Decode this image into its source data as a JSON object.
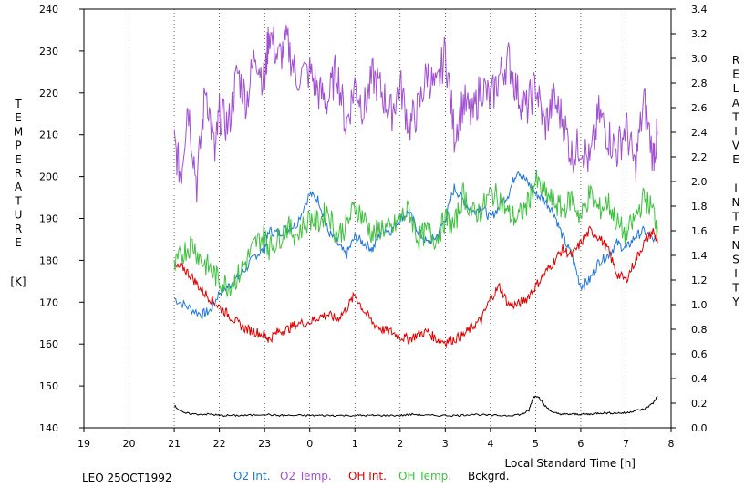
{
  "chart_data": {
    "type": "line",
    "station_label": "LEO 25OCT1992",
    "xlabel": "Local Standard Time [h]",
    "ylabel_left_letters": [
      "T",
      "E",
      "M",
      "P",
      "E",
      "R",
      "A",
      "T",
      "U",
      "R",
      "E"
    ],
    "ylabel_left_unit": "[K]",
    "ylabel_right_letters": [
      "R",
      "E",
      "L",
      "A",
      "T",
      "I",
      "V",
      "E",
      "",
      "I",
      "N",
      "T",
      "E",
      "N",
      "S",
      "I",
      "T",
      "Y"
    ],
    "x_ticks": [
      "19",
      "20",
      "21",
      "22",
      "23",
      "0",
      "1",
      "2",
      "3",
      "4",
      "5",
      "6",
      "7",
      "8"
    ],
    "x_range_hours": [
      19,
      32
    ],
    "y_left_ticks": [
      "140",
      "150",
      "160",
      "170",
      "180",
      "190",
      "200",
      "210",
      "220",
      "230",
      "240"
    ],
    "y_left_range": [
      140,
      240
    ],
    "y_right_ticks": [
      "0.0",
      "0.2",
      "0.4",
      "0.6",
      "0.8",
      "1.0",
      "1.2",
      "1.4",
      "1.6",
      "1.8",
      "2.0",
      "2.2",
      "2.4",
      "2.6",
      "2.8",
      "3.0",
      "3.2",
      "3.4"
    ],
    "y_right_range": [
      0,
      3.4
    ],
    "legend_position": "bottom",
    "grid": "vertical",
    "series": [
      {
        "name": "O2 Int.",
        "color": "#1e78d8",
        "axis": "right",
        "x": [
          21.0,
          21.3,
          21.6,
          21.8,
          22.0,
          22.2,
          22.4,
          22.6,
          22.8,
          23.0,
          23.1,
          23.3,
          23.5,
          23.7,
          24.0,
          24.2,
          24.4,
          24.6,
          24.8,
          25.0,
          25.2,
          25.4,
          25.6,
          25.8,
          26.0,
          26.2,
          26.4,
          26.6,
          26.8,
          27.0,
          27.2,
          27.4,
          27.6,
          27.8,
          28.0,
          28.2,
          28.4,
          28.6,
          28.8,
          29.0,
          29.2,
          29.4,
          29.6,
          29.8,
          30.0,
          30.2,
          30.4,
          30.6,
          30.8,
          31.0,
          31.2,
          31.4,
          31.7
        ],
        "y": [
          1.05,
          0.98,
          0.92,
          0.95,
          1.1,
          1.15,
          1.22,
          1.3,
          1.4,
          1.45,
          1.6,
          1.58,
          1.62,
          1.65,
          1.9,
          1.85,
          1.6,
          1.5,
          1.4,
          1.55,
          1.5,
          1.45,
          1.62,
          1.6,
          1.7,
          1.75,
          1.6,
          1.5,
          1.55,
          1.7,
          1.95,
          1.85,
          1.75,
          1.8,
          1.7,
          1.8,
          1.9,
          2.1,
          2.0,
          1.9,
          1.85,
          1.75,
          1.55,
          1.4,
          1.15,
          1.2,
          1.35,
          1.4,
          1.5,
          1.45,
          1.55,
          1.6,
          1.5
        ]
      },
      {
        "name": "O2 Temp.",
        "color": "#a050d0",
        "axis": "left",
        "x": [
          21.0,
          21.15,
          21.3,
          21.5,
          21.7,
          21.9,
          22.0,
          22.2,
          22.4,
          22.6,
          22.8,
          23.0,
          23.1,
          23.3,
          23.5,
          23.7,
          24.0,
          24.2,
          24.4,
          24.6,
          24.8,
          25.0,
          25.2,
          25.4,
          25.6,
          25.8,
          26.0,
          26.2,
          26.4,
          26.6,
          26.8,
          27.0,
          27.2,
          27.4,
          27.6,
          27.8,
          28.0,
          28.2,
          28.4,
          28.6,
          28.8,
          29.0,
          29.2,
          29.4,
          29.6,
          29.8,
          30.0,
          30.2,
          30.4,
          30.6,
          30.8,
          31.0,
          31.2,
          31.4,
          31.6,
          31.7
        ],
        "y": [
          208,
          200,
          218,
          198,
          222,
          205,
          215,
          212,
          225,
          218,
          230,
          222,
          235,
          228,
          232,
          224,
          225,
          220,
          218,
          226,
          212,
          222,
          216,
          224,
          220,
          215,
          222,
          212,
          216,
          225,
          220,
          230,
          210,
          218,
          214,
          222,
          218,
          224,
          228,
          220,
          216,
          222,
          212,
          218,
          214,
          205,
          208,
          203,
          215,
          210,
          206,
          212,
          202,
          218,
          205,
          210
        ]
      },
      {
        "name": "OH Int.",
        "color": "#e00000",
        "axis": "right",
        "x": [
          21.0,
          21.2,
          21.4,
          21.6,
          21.8,
          22.0,
          22.2,
          22.4,
          22.6,
          22.8,
          23.0,
          23.1,
          23.3,
          23.5,
          23.7,
          24.0,
          24.2,
          24.4,
          24.6,
          24.8,
          25.0,
          25.2,
          25.4,
          25.6,
          25.8,
          26.0,
          26.2,
          26.4,
          26.6,
          26.8,
          27.0,
          27.2,
          27.4,
          27.6,
          27.8,
          28.0,
          28.2,
          28.4,
          28.6,
          28.8,
          29.0,
          29.2,
          29.4,
          29.6,
          29.8,
          30.0,
          30.2,
          30.4,
          30.6,
          30.8,
          31.0,
          31.2,
          31.4,
          31.6,
          31.7
        ],
        "y": [
          1.3,
          1.3,
          1.22,
          1.12,
          1.05,
          0.98,
          0.92,
          0.85,
          0.8,
          0.78,
          0.75,
          0.72,
          0.78,
          0.8,
          0.84,
          0.86,
          0.9,
          0.92,
          0.88,
          0.96,
          1.08,
          0.95,
          0.85,
          0.8,
          0.78,
          0.74,
          0.72,
          0.76,
          0.78,
          0.72,
          0.7,
          0.72,
          0.75,
          0.82,
          0.88,
          1.05,
          1.15,
          1.0,
          1.0,
          1.05,
          1.15,
          1.25,
          1.35,
          1.45,
          1.4,
          1.5,
          1.6,
          1.55,
          1.45,
          1.25,
          1.2,
          1.35,
          1.5,
          1.6,
          1.5
        ]
      },
      {
        "name": "OH Temp.",
        "color": "#40c040",
        "axis": "left",
        "x": [
          21.0,
          21.2,
          21.4,
          21.6,
          21.8,
          22.0,
          22.2,
          22.4,
          22.6,
          22.8,
          23.0,
          23.1,
          23.3,
          23.5,
          23.7,
          24.0,
          24.2,
          24.4,
          24.6,
          24.8,
          25.0,
          25.2,
          25.4,
          25.6,
          25.8,
          26.0,
          26.2,
          26.4,
          26.6,
          26.8,
          27.0,
          27.2,
          27.4,
          27.6,
          27.8,
          28.0,
          28.2,
          28.4,
          28.6,
          28.8,
          29.0,
          29.2,
          29.4,
          29.6,
          29.8,
          30.0,
          30.2,
          30.4,
          30.6,
          30.8,
          31.0,
          31.2,
          31.4,
          31.6,
          31.7
        ],
        "y": [
          178,
          182,
          184,
          180,
          178,
          175,
          174,
          176,
          180,
          184,
          186,
          183,
          185,
          188,
          186,
          190,
          189,
          192,
          186,
          188,
          193,
          190,
          186,
          188,
          187,
          190,
          192,
          185,
          187,
          185,
          190,
          188,
          196,
          191,
          192,
          196,
          195,
          191,
          190,
          193,
          199,
          196,
          194,
          192,
          195,
          190,
          196,
          192,
          194,
          189,
          186,
          190,
          195,
          192,
          188
        ]
      },
      {
        "name": "Bckgrd.",
        "color": "#000000",
        "axis": "right",
        "x": [
          21.0,
          21.2,
          21.5,
          21.8,
          22.0,
          22.3,
          22.6,
          23.0,
          23.3,
          23.6,
          24.0,
          24.3,
          24.6,
          25.0,
          25.3,
          25.6,
          26.0,
          26.3,
          26.6,
          27.0,
          27.3,
          27.6,
          28.0,
          28.4,
          28.7,
          28.85,
          28.95,
          29.05,
          29.2,
          29.4,
          29.6,
          29.8,
          30.0,
          30.2,
          30.4,
          30.6,
          30.8,
          31.0,
          31.2,
          31.4,
          31.6,
          31.7
        ],
        "y": [
          0.18,
          0.12,
          0.11,
          0.11,
          0.1,
          0.1,
          0.1,
          0.11,
          0.1,
          0.1,
          0.1,
          0.1,
          0.1,
          0.1,
          0.1,
          0.1,
          0.1,
          0.11,
          0.1,
          0.1,
          0.1,
          0.11,
          0.1,
          0.1,
          0.11,
          0.14,
          0.25,
          0.26,
          0.18,
          0.12,
          0.11,
          0.11,
          0.11,
          0.11,
          0.12,
          0.12,
          0.12,
          0.12,
          0.14,
          0.15,
          0.2,
          0.26
        ]
      }
    ]
  }
}
